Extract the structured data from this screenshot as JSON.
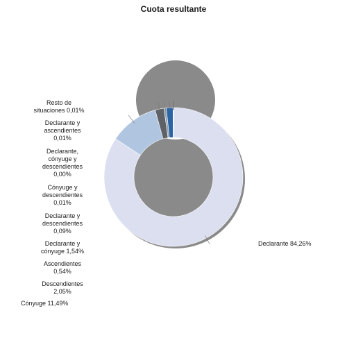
{
  "chart_data": {
    "type": "pie",
    "title": "Cuota resultante",
    "donut": true,
    "slices": [
      {
        "label": "Declarante 84,26%",
        "value": 84.26,
        "color": "#dcdff0"
      },
      {
        "label": "Cónyuge 11,49%",
        "value": 11.49,
        "color": "#b0c5e0"
      },
      {
        "label": "Descendientes\n2,05%",
        "value": 2.05,
        "color": "#5e6267"
      },
      {
        "label": "Ascendientes\n0,54%",
        "value": 0.54,
        "color": "#8ea0aa"
      },
      {
        "label": "Declarante y\ncónyuge 1,54%",
        "value": 1.54,
        "color": "#2a64a4"
      },
      {
        "label": "Declarante y\ndescendientes\n0,09%",
        "value": 0.09,
        "color": "#e0a020"
      },
      {
        "label": "Cónyuge y\ndescendientes\n0,01%",
        "value": 0.01,
        "color": "#8e2a2a"
      },
      {
        "label": "Declarante,\ncónyuge y\ndescendientes\n0,00%",
        "value": 0.0,
        "color": "#6a8a3a"
      },
      {
        "label": "Declarante y\nascendientes\n0,01%",
        "value": 0.01,
        "color": "#4a3a80"
      },
      {
        "label": "Resto de\nsituaciones 0,01%",
        "value": 0.01,
        "color": "#30a0a0"
      }
    ]
  }
}
